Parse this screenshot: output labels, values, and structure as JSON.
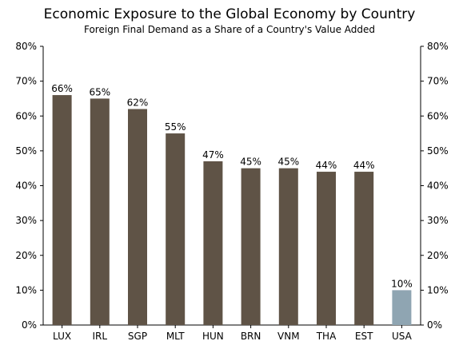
{
  "chart_data": {
    "type": "bar",
    "title": "Economic Exposure to the Global Economy by Country",
    "subtitle": "Foreign Final Demand as a Share of a Country's Value Added",
    "categories": [
      "LUX",
      "IRL",
      "SGP",
      "MLT",
      "HUN",
      "BRN",
      "VNM",
      "THA",
      "EST",
      "USA"
    ],
    "values": [
      66,
      65,
      62,
      55,
      47,
      45,
      45,
      44,
      44,
      10
    ],
    "data_labels": [
      "66%",
      "65%",
      "62%",
      "55%",
      "47%",
      "45%",
      "45%",
      "44%",
      "44%",
      "10%"
    ],
    "y_ticks": [
      "0%",
      "10%",
      "20%",
      "30%",
      "40%",
      "50%",
      "60%",
      "70%",
      "80%"
    ],
    "ylim": [
      0,
      80
    ],
    "y_axis": "both sides",
    "grid": false,
    "legend": "none",
    "colors": {
      "default_bar": "#5f5346",
      "highlight_bar": "#8fa5b2",
      "highlight_category": "USA"
    }
  }
}
